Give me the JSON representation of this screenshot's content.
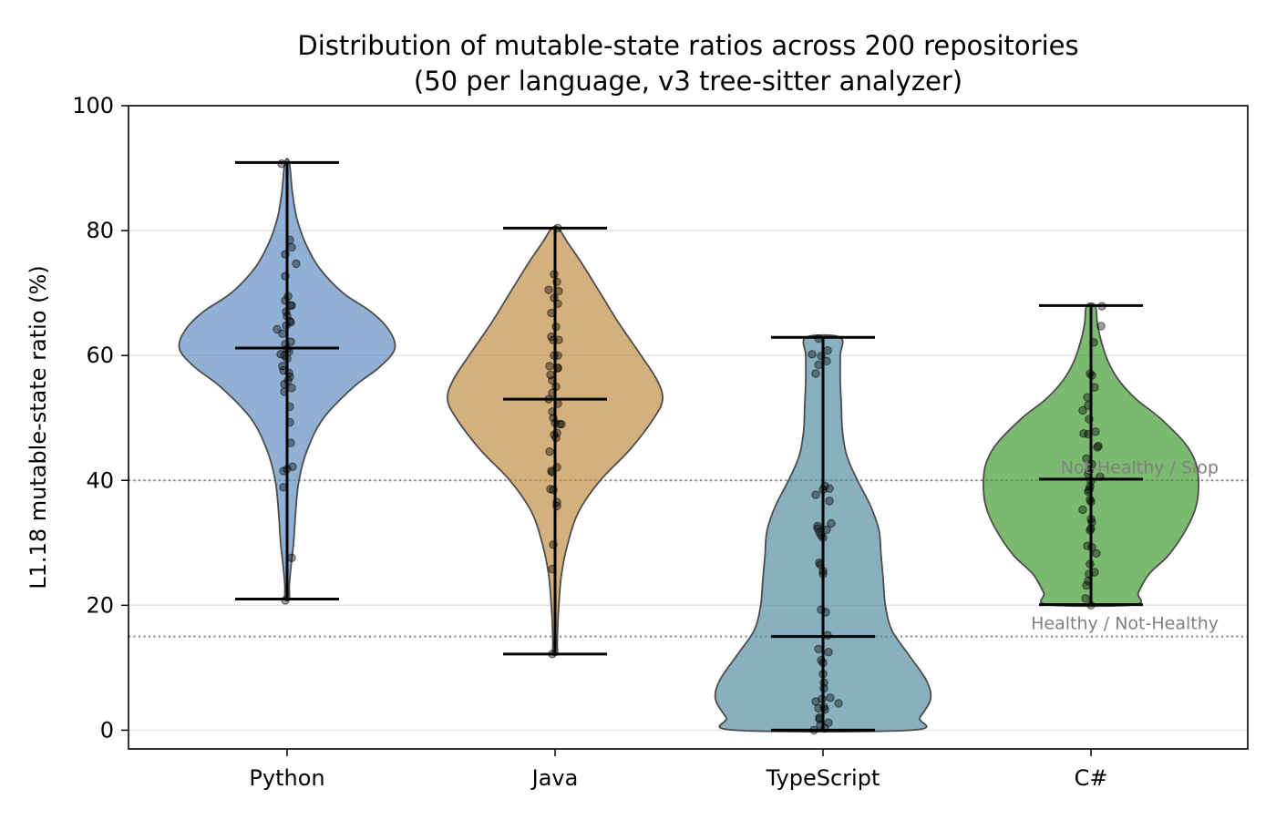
{
  "chart_data": {
    "type": "violin",
    "title": "Distribution of mutable-state ratios across 200 repositories",
    "subtitle": "(50 per language, v3 tree-sitter analyzer)",
    "xlabel": "",
    "ylabel": "L1.18 mutable-state ratio (%)",
    "ylim": [
      -3,
      100
    ],
    "yticks": [
      0,
      20,
      40,
      60,
      80,
      100
    ],
    "grid": "horizontal",
    "categories": [
      "Python",
      "Java",
      "TypeScript",
      "C#"
    ],
    "colors": [
      "#5b8bbf",
      "#c08a3e",
      "#4f8a9f",
      "#3f9a2e"
    ],
    "series": [
      {
        "category": "Python",
        "min": 21,
        "median": 61.2,
        "max": 90.9,
        "density": [
          [
            21,
            0.02
          ],
          [
            23,
            0.02
          ],
          [
            26,
            0.035
          ],
          [
            30,
            0.06
          ],
          [
            35,
            0.08
          ],
          [
            40,
            0.11
          ],
          [
            45,
            0.19
          ],
          [
            50,
            0.34
          ],
          [
            55,
            0.62
          ],
          [
            58,
            0.85
          ],
          [
            61,
            1.0
          ],
          [
            64,
            0.95
          ],
          [
            67,
            0.78
          ],
          [
            70,
            0.52
          ],
          [
            74,
            0.3
          ],
          [
            78,
            0.17
          ],
          [
            82,
            0.09
          ],
          [
            86,
            0.05
          ],
          [
            90.9,
            0.02
          ]
        ],
        "points": [
          [
            90.7,
            -0.06
          ],
          [
            78.5,
            0.03
          ],
          [
            77.3,
            0.05
          ],
          [
            76.2,
            -0.02
          ],
          [
            74.7,
            0.1
          ],
          [
            72.7,
            -0.02
          ],
          [
            69.5,
            0.01
          ],
          [
            68.8,
            -0.02
          ],
          [
            68.0,
            0.04
          ],
          [
            68.0,
            0.05
          ],
          [
            67.0,
            -0.01
          ],
          [
            66.3,
            0.0
          ],
          [
            65.5,
            0.03
          ],
          [
            65.3,
            0.04
          ],
          [
            64.8,
            -0.01
          ],
          [
            64.2,
            -0.11
          ],
          [
            63.5,
            -0.05
          ],
          [
            62.2,
            0.04
          ],
          [
            61.8,
            -0.02
          ],
          [
            61.0,
            0.0
          ],
          [
            60.6,
            0.02
          ],
          [
            60.2,
            -0.07
          ],
          [
            60.0,
            -0.03
          ],
          [
            59.5,
            0.0
          ],
          [
            58.3,
            -0.05
          ],
          [
            57.6,
            -0.04
          ],
          [
            57.2,
            0.02
          ],
          [
            56.6,
            0.03
          ],
          [
            56.0,
            0.01
          ],
          [
            55.4,
            -0.03
          ],
          [
            54.8,
            0.05
          ],
          [
            54.2,
            -0.03
          ],
          [
            51.8,
            0.03
          ],
          [
            49.3,
            0.03
          ],
          [
            46.0,
            0.04
          ],
          [
            42.2,
            0.06
          ],
          [
            41.8,
            0.0
          ],
          [
            41.5,
            -0.04
          ],
          [
            38.9,
            -0.04
          ],
          [
            27.6,
            0.05
          ],
          [
            20.8,
            -0.02
          ]
        ]
      },
      {
        "category": "Java",
        "min": 12.2,
        "median": 53.0,
        "max": 80.4,
        "density": [
          [
            12.2,
            0.02
          ],
          [
            14,
            0.02
          ],
          [
            17,
            0.025
          ],
          [
            20,
            0.035
          ],
          [
            25,
            0.06
          ],
          [
            30,
            0.12
          ],
          [
            35,
            0.22
          ],
          [
            40,
            0.42
          ],
          [
            45,
            0.7
          ],
          [
            50,
            0.92
          ],
          [
            53,
            1.0
          ],
          [
            56,
            0.95
          ],
          [
            60,
            0.8
          ],
          [
            65,
            0.6
          ],
          [
            70,
            0.42
          ],
          [
            75,
            0.24
          ],
          [
            78,
            0.12
          ],
          [
            80.4,
            0.03
          ]
        ],
        "points": [
          [
            80.4,
            0.03
          ],
          [
            73.0,
            -0.01
          ],
          [
            71.8,
            0.02
          ],
          [
            70.5,
            -0.07
          ],
          [
            70.3,
            0.04
          ],
          [
            69.2,
            -0.01
          ],
          [
            68.3,
            0.03
          ],
          [
            66.8,
            -0.04
          ],
          [
            64.6,
            0.01
          ],
          [
            63.0,
            -0.04
          ],
          [
            62.5,
            -0.02
          ],
          [
            62.5,
            0.04
          ],
          [
            60.0,
            -0.01
          ],
          [
            60.0,
            0.03
          ],
          [
            58.3,
            -0.06
          ],
          [
            58.0,
            0.03
          ],
          [
            58.0,
            0.03
          ],
          [
            56.9,
            -0.05
          ],
          [
            56.0,
            -0.03
          ],
          [
            55.0,
            0.01
          ],
          [
            54.0,
            -0.03
          ],
          [
            53.0,
            -0.07
          ],
          [
            52.3,
            0.03
          ],
          [
            51.0,
            -0.03
          ],
          [
            50.0,
            -0.02
          ],
          [
            49.2,
            0.0
          ],
          [
            49.0,
            0.05
          ],
          [
            49.0,
            0.07
          ],
          [
            47.6,
            0.02
          ],
          [
            47.3,
            -0.01
          ],
          [
            46.8,
            0.01
          ],
          [
            44.6,
            -0.06
          ],
          [
            42.1,
            0.02
          ],
          [
            41.5,
            -0.04
          ],
          [
            41.3,
            -0.03
          ],
          [
            38.6,
            -0.05
          ],
          [
            38.5,
            -0.02
          ],
          [
            36.5,
            0.02
          ],
          [
            35.9,
            0.02
          ],
          [
            29.7,
            -0.02
          ],
          [
            25.8,
            -0.03
          ],
          [
            12.2,
            -0.03
          ]
        ]
      },
      {
        "category": "TypeScript",
        "min": 0.0,
        "median": 15.0,
        "max": 62.9,
        "density": [
          [
            0,
            0.82
          ],
          [
            2,
            0.9
          ],
          [
            5,
            1.0
          ],
          [
            8,
            0.96
          ],
          [
            12,
            0.8
          ],
          [
            16,
            0.64
          ],
          [
            20,
            0.58
          ],
          [
            24,
            0.56
          ],
          [
            28,
            0.54
          ],
          [
            32,
            0.52
          ],
          [
            36,
            0.44
          ],
          [
            40,
            0.32
          ],
          [
            44,
            0.22
          ],
          [
            48,
            0.18
          ],
          [
            52,
            0.17
          ],
          [
            56,
            0.16
          ],
          [
            60,
            0.16
          ],
          [
            62.9,
            0.16
          ]
        ],
        "points": [
          [
            62.7,
            -0.05
          ],
          [
            60.8,
            0.05
          ],
          [
            60.2,
            -0.12
          ],
          [
            59.9,
            -0.02
          ],
          [
            59.1,
            0.04
          ],
          [
            58.5,
            -0.05
          ],
          [
            57.1,
            -0.08
          ],
          [
            39.1,
            0.02
          ],
          [
            38.7,
            0.07
          ],
          [
            38.5,
            0.0
          ],
          [
            37.7,
            -0.08
          ],
          [
            36.7,
            0.07
          ],
          [
            33.1,
            0.09
          ],
          [
            32.7,
            -0.06
          ],
          [
            32.3,
            -0.06
          ],
          [
            32.1,
            0.04
          ],
          [
            31.7,
            -0.04
          ],
          [
            31.2,
            -0.02
          ],
          [
            30.8,
            0.0
          ],
          [
            26.8,
            -0.04
          ],
          [
            26.5,
            -0.03
          ],
          [
            25.5,
            0.0
          ],
          [
            25.0,
            0.0
          ],
          [
            19.3,
            -0.02
          ],
          [
            18.9,
            0.03
          ],
          [
            15.2,
            0.05
          ],
          [
            13.0,
            -0.05
          ],
          [
            12.5,
            0.06
          ],
          [
            11.2,
            -0.02
          ],
          [
            10.8,
            0.0
          ],
          [
            9.0,
            0.0
          ],
          [
            7.6,
            0.01
          ],
          [
            6.7,
            0.01
          ],
          [
            5.2,
            0.08
          ],
          [
            5.0,
            -0.01
          ],
          [
            4.6,
            -0.08
          ],
          [
            4.3,
            0.17
          ],
          [
            3.7,
            0.01
          ],
          [
            3.5,
            -0.05
          ],
          [
            3.3,
            0.02
          ],
          [
            2.0,
            -0.04
          ],
          [
            1.8,
            -0.04
          ],
          [
            1.2,
            0.06
          ],
          [
            0.8,
            -0.03
          ],
          [
            0.3,
            0.02
          ],
          [
            0.0,
            -0.1
          ]
        ]
      },
      {
        "category": "C#",
        "min": 20.1,
        "median": 40.2,
        "max": 68.0,
        "density": [
          [
            20.1,
            0.4
          ],
          [
            22,
            0.44
          ],
          [
            25,
            0.54
          ],
          [
            28,
            0.72
          ],
          [
            32,
            0.88
          ],
          [
            36,
            0.98
          ],
          [
            40,
            1.0
          ],
          [
            43,
            0.97
          ],
          [
            46,
            0.87
          ],
          [
            50,
            0.64
          ],
          [
            53,
            0.42
          ],
          [
            56,
            0.26
          ],
          [
            59,
            0.16
          ],
          [
            62,
            0.1
          ],
          [
            65,
            0.06
          ],
          [
            68,
            0.04
          ]
        ],
        "points": [
          [
            67.9,
            0.12
          ],
          [
            64.7,
            0.11
          ],
          [
            62.1,
            0.03
          ],
          [
            57.1,
            -0.01
          ],
          [
            56.8,
            0.01
          ],
          [
            54.9,
            0.04
          ],
          [
            53.3,
            -0.04
          ],
          [
            52.0,
            -0.03
          ],
          [
            51.2,
            -0.09
          ],
          [
            49.8,
            -0.02
          ],
          [
            47.8,
            0.05
          ],
          [
            47.5,
            -0.08
          ],
          [
            47.4,
            -0.03
          ],
          [
            45.5,
            0.08
          ],
          [
            45.3,
            0.07
          ],
          [
            43.5,
            -0.05
          ],
          [
            42.6,
            0.01
          ],
          [
            41.6,
            -0.02
          ],
          [
            41.0,
            -0.03
          ],
          [
            40.6,
            0.1
          ],
          [
            39.9,
            0.0
          ],
          [
            39.0,
            -0.01
          ],
          [
            38.5,
            -0.02
          ],
          [
            38.2,
            -0.03
          ],
          [
            36.9,
            -0.01
          ],
          [
            36.6,
            0.0
          ],
          [
            35.3,
            -0.09
          ],
          [
            33.8,
            0.0
          ],
          [
            33.3,
            0.01
          ],
          [
            32.3,
            0.0
          ],
          [
            32.0,
            -0.01
          ],
          [
            29.5,
            -0.04
          ],
          [
            29.3,
            0.01
          ],
          [
            28.3,
            0.06
          ],
          [
            26.6,
            -0.01
          ],
          [
            25.3,
            0.04
          ],
          [
            25.0,
            -0.02
          ],
          [
            23.9,
            -0.03
          ],
          [
            23.2,
            -0.05
          ],
          [
            21.1,
            -0.06
          ],
          [
            20.0,
            0.0
          ]
        ]
      }
    ],
    "reference_lines": [
      {
        "y": 40,
        "label": "Not-Healthy / Slop"
      },
      {
        "y": 15,
        "label": "Healthy / Not-Healthy"
      }
    ]
  }
}
